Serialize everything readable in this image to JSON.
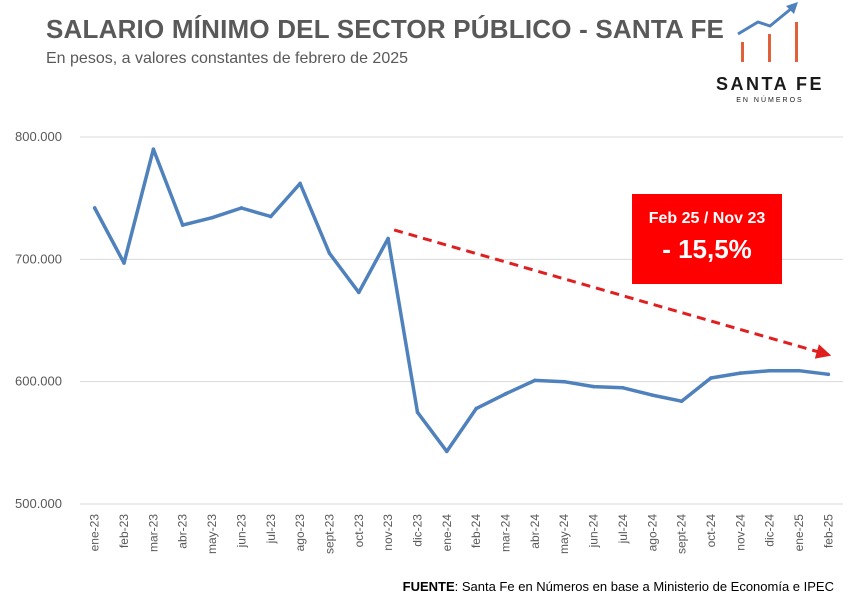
{
  "header": {
    "title": "SALARIO MÍNIMO DEL SECTOR PÚBLICO - SANTA FE",
    "subtitle": "En pesos, a valores constantes de febrero de 2025"
  },
  "logo": {
    "name": "SANTA FE",
    "tagline": "EN NÚMEROS",
    "icon": "bar-chart-growth-icon"
  },
  "callout": {
    "label": "Feb 25 / Nov 23",
    "value": "- 15,5%"
  },
  "source": {
    "prefix": "FUENTE",
    "text": ": Santa Fe en Números en base a Ministerio de Economía e IPEC"
  },
  "chart_data": {
    "type": "line",
    "title": "SALARIO MÍNIMO DEL SECTOR PÚBLICO - SANTA FE",
    "subtitle": "En pesos, a valores constantes de febrero de 2025",
    "categories": [
      "ene-23",
      "feb-23",
      "mar-23",
      "abr-23",
      "may-23",
      "jun-23",
      "jul-23",
      "ago-23",
      "sept-23",
      "oct-23",
      "nov-23",
      "dic-23",
      "ene-24",
      "feb-24",
      "mar-24",
      "abr-24",
      "may-24",
      "jun-24",
      "jul-24",
      "ago-24",
      "sept-24",
      "oct-24",
      "nov-24",
      "dic-24",
      "ene-25",
      "feb-25"
    ],
    "values": [
      742000,
      697000,
      790000,
      728000,
      734000,
      742000,
      735000,
      762000,
      705000,
      673000,
      717000,
      575000,
      543000,
      578000,
      590000,
      601000,
      600000,
      596000,
      595000,
      589000,
      584000,
      603000,
      607000,
      609000,
      609000,
      606000
    ],
    "ylim": [
      500000,
      800000
    ],
    "yticks": [
      500000,
      600000,
      700000,
      800000
    ],
    "ytick_labels": [
      "500.000",
      "600.000",
      "700.000",
      "800.000"
    ],
    "grid": true,
    "legend": false,
    "trend_arrow": {
      "from": "nov-23",
      "to": "feb-25",
      "from_value": 724000,
      "to_value": 622000
    },
    "colors": {
      "line": "#4f81bd",
      "arrow": "#e02020",
      "grid": "#d9d9d9",
      "callout": "#ff0000"
    }
  }
}
